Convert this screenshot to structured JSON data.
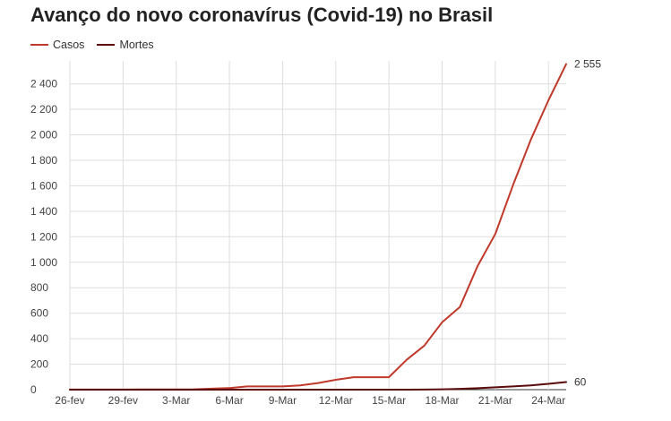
{
  "chart_data": {
    "type": "line",
    "title": "Avanço do novo coronavírus (Covid-19) no Brasil",
    "xlabel": "",
    "ylabel": "",
    "x": [
      "26-fev",
      "27-fev",
      "28-fev",
      "29-fev",
      "1-Mar",
      "2-Mar",
      "3-Mar",
      "4-Mar",
      "5-Mar",
      "6-Mar",
      "7-Mar",
      "8-Mar",
      "9-Mar",
      "10-Mar",
      "11-Mar",
      "12-Mar",
      "13-Mar",
      "14-Mar",
      "15-Mar",
      "16-Mar",
      "17-Mar",
      "18-Mar",
      "19-Mar",
      "20-Mar",
      "21-Mar",
      "22-Mar",
      "23-Mar",
      "24-Mar",
      "25-Mar"
    ],
    "x_tick_labels": [
      "26-fev",
      "29-fev",
      "3-Mar",
      "6-Mar",
      "9-Mar",
      "12-Mar",
      "15-Mar",
      "18-Mar",
      "21-Mar",
      "24-Mar"
    ],
    "y_ticks": [
      0,
      200,
      400,
      600,
      800,
      1000,
      1200,
      1400,
      1600,
      1800,
      2000,
      2200,
      2400
    ],
    "y_tick_labels": [
      "0",
      "200",
      "400",
      "600",
      "800",
      "1 000",
      "1 200",
      "1 400",
      "1 600",
      "1 800",
      "2 000",
      "2 200",
      "2 400"
    ],
    "ylim": [
      0,
      2580
    ],
    "grid": true,
    "legend_position": "top-left",
    "series": [
      {
        "name": "Casos",
        "color": "#c0392b",
        "values": [
          1,
          1,
          1,
          1,
          2,
          2,
          2,
          3,
          8,
          13,
          25,
          25,
          25,
          34,
          52,
          77,
          98,
          98,
          98,
          234,
          346,
          529,
          648,
          970,
          1222,
          1604,
          1960,
          2271,
          2555
        ],
        "end_label": "2 555"
      },
      {
        "name": "Mortes",
        "color": "#5a0a0a",
        "values": [
          0,
          0,
          0,
          0,
          0,
          0,
          0,
          0,
          0,
          0,
          0,
          0,
          0,
          0,
          0,
          0,
          0,
          0,
          0,
          0,
          1,
          3,
          6,
          11,
          18,
          25,
          34,
          46,
          60
        ],
        "end_label": "60"
      }
    ]
  }
}
